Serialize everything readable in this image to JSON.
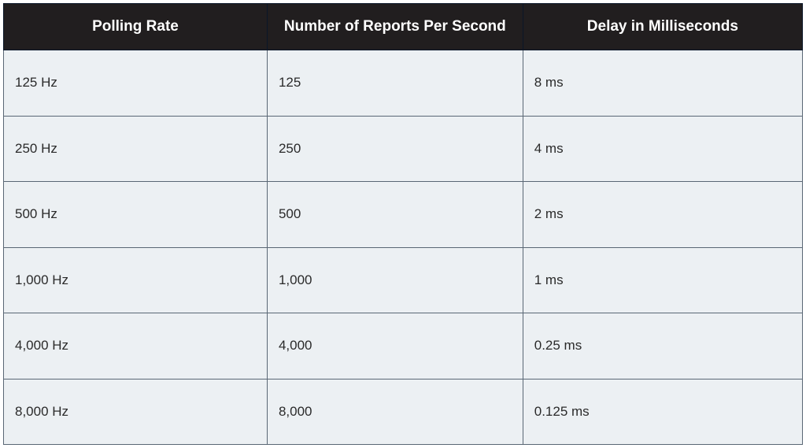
{
  "table": {
    "type": "table",
    "header_bg_color": "#211e1f",
    "header_text_color": "#ffffff",
    "row_bg_color": "#ecf0f3",
    "cell_text_color": "#2a2a2a",
    "border_color_outer": "#0a1628",
    "border_color_inner": "#5a6775",
    "header_fontsize": 19,
    "cell_fontsize": 17,
    "columns": [
      {
        "label": "Polling Rate",
        "width": "33%",
        "align": "left"
      },
      {
        "label": "Number of Reports Per Second",
        "width": "32%",
        "align": "left"
      },
      {
        "label": "Delay in Milliseconds",
        "width": "35%",
        "align": "left"
      }
    ],
    "rows": [
      [
        "125 Hz",
        "125",
        "8 ms"
      ],
      [
        "250 Hz",
        "250",
        "4 ms"
      ],
      [
        "500 Hz",
        "500",
        "2 ms"
      ],
      [
        "1,000 Hz",
        "1,000",
        "1 ms"
      ],
      [
        "4,000 Hz",
        "4,000",
        "0.25 ms"
      ],
      [
        "8,000 Hz",
        "8,000",
        "0.125 ms"
      ]
    ]
  }
}
